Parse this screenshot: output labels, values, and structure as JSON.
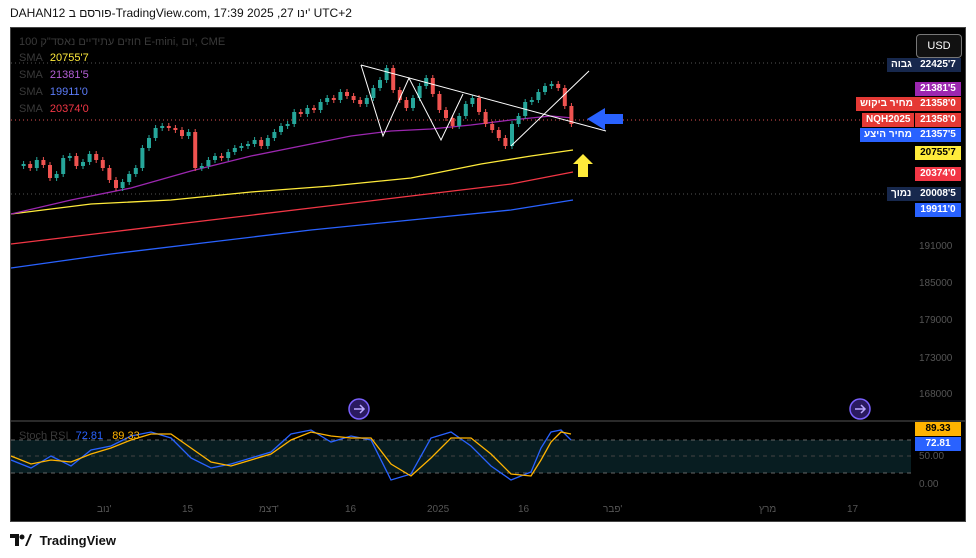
{
  "window": {
    "title": "DAHAN12 פורסם ב-TradingView.com, 17:39 2025 ,27 ינו' UTC+2"
  },
  "chart": {
    "title": "100 חוזים עתידיים נאסד\"ק E-mini, יום, CME",
    "currency_button": "USD",
    "sma_lines": [
      {
        "label": "SMA",
        "value": "20755'7",
        "color": "#ffeb3b"
      },
      {
        "label": "SMA",
        "value": "21381'5",
        "color": "#9c27b0"
      },
      {
        "label": "SMA",
        "value": "19911'0",
        "color": "#2962ff"
      },
      {
        "label": "SMA",
        "value": "20374'0",
        "color": "#f23645"
      }
    ],
    "price_labels": {
      "high_tag": "גבוה",
      "high_value": "22425'7",
      "sma_purple": "21381'5",
      "bid_tag": "מחיר ביקוש",
      "bid_value": "21358'0",
      "symbol_tag": "NQH2025",
      "symbol_value": "21358'0",
      "ask_tag": "מחיר היצע",
      "ask_value": "21357'5",
      "sma_yellow": "20755'7",
      "sma_red": "20374'0",
      "low_tag": "נמוך",
      "low_value": "20008'5",
      "sma_blue": "19911'0"
    },
    "price_axis": [
      "191000",
      "185000",
      "179000",
      "173000",
      "168000"
    ],
    "stoch": {
      "label": "Stoch RSI",
      "k": "72.81",
      "d": "89.33",
      "axis": [
        "50.00",
        "0.00"
      ]
    },
    "x_axis": [
      "נוב'",
      "15",
      "דצמ'",
      "16",
      "2025",
      "16",
      "פבר'",
      "מרץ",
      "17"
    ],
    "colors": {
      "up": "#26a69a",
      "down": "#ef5350",
      "background": "#000000",
      "arrow_blue": "#2962ff",
      "arrow_yellow": "#ffeb3b"
    }
  },
  "footer": {
    "brand": "TradingView"
  }
}
